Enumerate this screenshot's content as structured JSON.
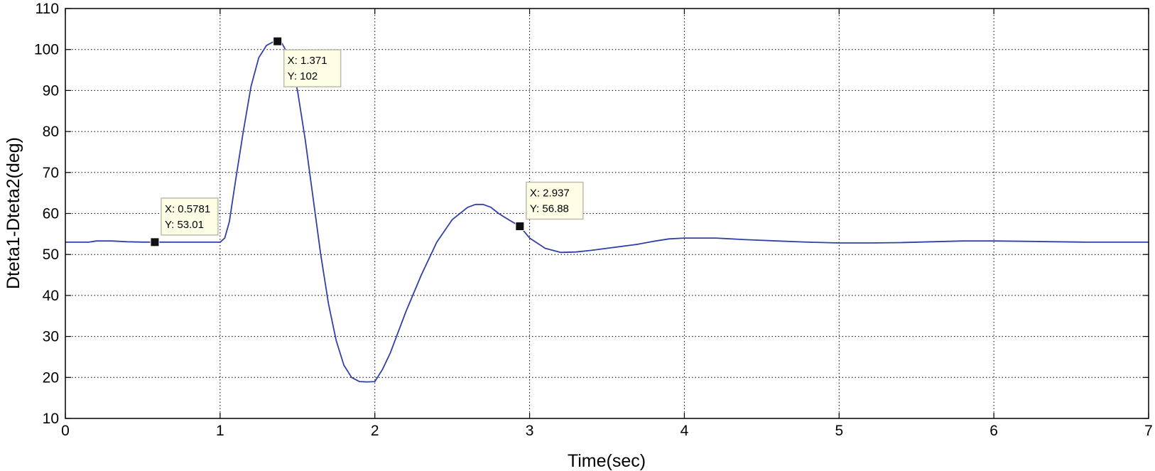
{
  "chart_data": {
    "type": "line",
    "title": "",
    "xlabel": "Time(sec)",
    "ylabel": "Dteta1-Dteta2(deg)",
    "xlim": [
      0,
      7
    ],
    "ylim": [
      10,
      110
    ],
    "xticks": [
      0,
      1,
      2,
      3,
      4,
      5,
      6,
      7
    ],
    "yticks": [
      10,
      20,
      30,
      40,
      50,
      60,
      70,
      80,
      90,
      100,
      110
    ],
    "xtick_labels": [
      "0",
      "1",
      "2",
      "3",
      "4",
      "5",
      "6",
      "7"
    ],
    "ytick_labels": [
      "10",
      "20",
      "30",
      "40",
      "50",
      "60",
      "70",
      "80",
      "90",
      "100",
      "110"
    ],
    "grid": true,
    "line_color": "#3040a8",
    "series": [
      {
        "x": [
          0,
          0.15,
          0.2,
          0.3,
          0.4,
          0.5,
          0.6,
          0.7,
          0.8,
          0.9,
          1.0,
          1.03,
          1.06,
          1.1,
          1.15,
          1.2,
          1.25,
          1.3,
          1.35,
          1.371,
          1.4,
          1.45,
          1.5,
          1.55,
          1.6,
          1.65,
          1.7,
          1.75,
          1.8,
          1.85,
          1.9,
          1.95,
          2.0,
          2.05,
          2.1,
          2.15,
          2.2,
          2.3,
          2.4,
          2.5,
          2.6,
          2.65,
          2.7,
          2.75,
          2.8,
          2.85,
          2.9,
          2.937,
          3.0,
          3.1,
          3.2,
          3.3,
          3.4,
          3.5,
          3.6,
          3.7,
          3.8,
          3.9,
          4.0,
          4.2,
          4.4,
          4.6,
          4.8,
          5.0,
          5.2,
          5.4,
          5.6,
          5.8,
          6.0,
          6.2,
          6.4,
          6.6,
          6.8,
          7.0
        ],
        "y": [
          53,
          53,
          53.3,
          53.3,
          53.1,
          53.01,
          53.01,
          53.0,
          53.0,
          53.0,
          53.0,
          54,
          58,
          68,
          80,
          91,
          98,
          101,
          102,
          102,
          101.5,
          98,
          90,
          78,
          64,
          50,
          38,
          29,
          23,
          20,
          19,
          18.9,
          19,
          22,
          26,
          31,
          36,
          45,
          53,
          58.5,
          61.5,
          62.2,
          62.2,
          61.5,
          60,
          58.8,
          57.7,
          56.88,
          54,
          51.5,
          50.5,
          50.6,
          51,
          51.5,
          52,
          52.5,
          53.2,
          53.8,
          54,
          54,
          53.6,
          53.3,
          53.0,
          52.8,
          52.8,
          52.9,
          53.1,
          53.3,
          53.3,
          53.2,
          53.1,
          53.0,
          53.0,
          53.0
        ]
      }
    ],
    "annotations": [
      {
        "x": 0.5781,
        "y": 53.01,
        "line1": "X: 0.5781",
        "line2": "Y: 53.01",
        "placement": "above-right"
      },
      {
        "x": 1.371,
        "y": 102,
        "line1": "X: 1.371",
        "line2": "Y: 102",
        "placement": "below-right"
      },
      {
        "x": 2.937,
        "y": 56.88,
        "line1": "X: 2.937",
        "line2": "Y: 56.88",
        "placement": "above-right"
      }
    ]
  }
}
